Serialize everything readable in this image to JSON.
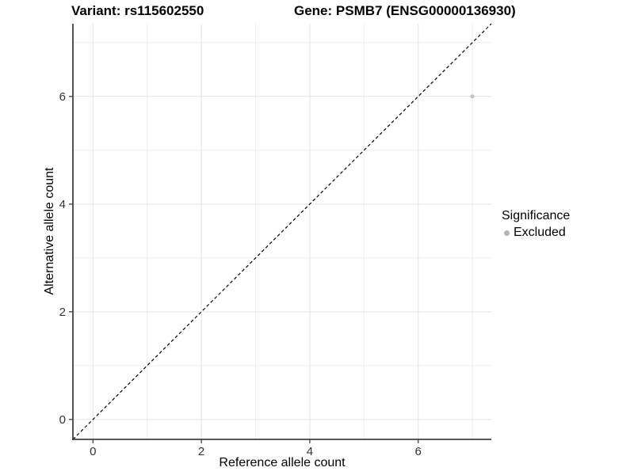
{
  "titles": {
    "left": "Variant: rs115602550",
    "right": "Gene: PSMB7 (ENSG00000136930)"
  },
  "legend": {
    "title": "Significance",
    "entries": [
      {
        "label": "Excluded",
        "color": "#b5b5b5"
      }
    ]
  },
  "chart_data": {
    "type": "scatter",
    "title": "Variant: rs115602550    Gene: PSMB7 (ENSG00000136930)",
    "xlabel": "Reference allele count",
    "ylabel": "Alternative allele count",
    "xlim": [
      -0.37,
      7.35
    ],
    "ylim": [
      -0.37,
      7.35
    ],
    "x_ticks": [
      0,
      2,
      4,
      6
    ],
    "y_ticks": [
      0,
      2,
      4,
      6
    ],
    "grid_breaks": [
      0,
      1,
      2,
      3,
      4,
      5,
      6,
      7
    ],
    "grid": true,
    "series": [
      {
        "name": "Excluded",
        "color": "#c1c1c1",
        "points": [
          {
            "x": 7,
            "y": 6
          }
        ]
      }
    ],
    "reference_line": {
      "type": "identity",
      "slope": 1,
      "intercept": 0,
      "style": "dashed",
      "color": "#000000"
    },
    "legend_position": "right",
    "colors": {
      "major_grid": "#e2e2e2",
      "minor_grid": "#ededed",
      "axis_line": "#404040",
      "tick_text": "#333333",
      "panel_background": "#ffffff"
    }
  }
}
